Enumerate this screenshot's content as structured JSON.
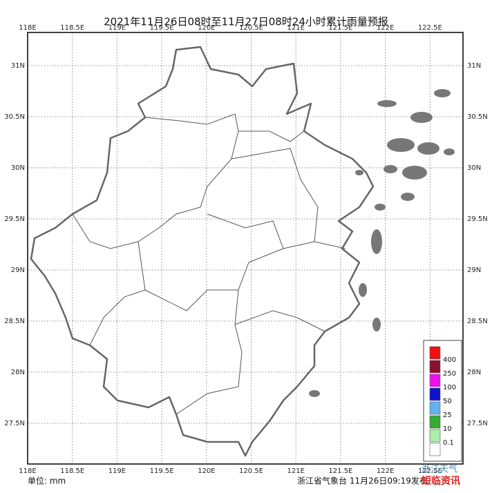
{
  "map": {
    "title": "2021年11月26日08时至11月27日08时24小时累计雨量预报",
    "lon_labels": [
      "118E",
      "118.5E",
      "119E",
      "119.5E",
      "120E",
      "120.5E",
      "121E",
      "121.5E",
      "122E",
      "122.5E"
    ],
    "lat_labels": [
      "31N",
      "30.5N",
      "30N",
      "29.5N",
      "29N",
      "28.5N",
      "28N",
      "27.5N"
    ],
    "legend_colors": [
      "#ee1111",
      "#8b1030",
      "#ee11ee",
      "#1111cc",
      "#66b2f0",
      "#33aa33",
      "#aaeeaa",
      "#ffffff"
    ],
    "legend_labels": [
      "400",
      "250",
      "100",
      "50",
      "25",
      "10",
      "0.1"
    ],
    "unit": "单位: mm",
    "footer": "浙江省气象台 11月26日09:19发布",
    "watermark": [
      "浙江天气",
      "短临资讯"
    ]
  }
}
